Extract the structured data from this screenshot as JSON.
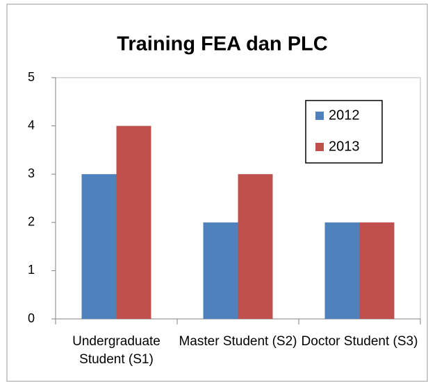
{
  "chart_data": {
    "type": "bar",
    "title": "Training FEA dan PLC",
    "categories": [
      "Undergraduate Student (S1)",
      "Master Student (S2)",
      "Doctor Student (S3)"
    ],
    "series": [
      {
        "name": "2012",
        "color": "#4f81bd",
        "values": [
          3,
          2,
          2
        ]
      },
      {
        "name": "2013",
        "color": "#c0504d",
        "values": [
          4,
          3,
          2
        ]
      }
    ],
    "ylim": [
      0,
      5
    ],
    "yticks": [
      0,
      1,
      2,
      3,
      4,
      5
    ],
    "grid": false,
    "legend": "upper right"
  }
}
